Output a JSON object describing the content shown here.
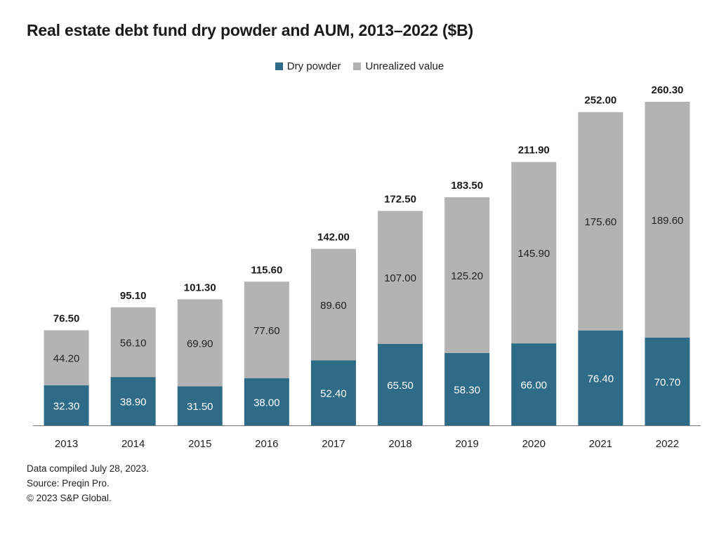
{
  "chart_data": {
    "type": "bar",
    "stacked": true,
    "title": "Real estate debt fund dry powder and AUM, 2013–2022 ($B)",
    "categories": [
      "2013",
      "2014",
      "2015",
      "2016",
      "2017",
      "2018",
      "2019",
      "2020",
      "2021",
      "2022"
    ],
    "series": [
      {
        "name": "Dry powder",
        "color": "#2e6b87",
        "values": [
          32.3,
          38.9,
          31.5,
          38.0,
          52.4,
          65.5,
          58.3,
          66.0,
          76.4,
          70.7
        ],
        "labels": [
          "32.30",
          "38.90",
          "31.50",
          "38.00",
          "52.40",
          "65.50",
          "58.30",
          "66.00",
          "76.40",
          "70.70"
        ]
      },
      {
        "name": "Unrealized value",
        "color": "#b3b3b3",
        "values": [
          44.2,
          56.1,
          69.9,
          77.6,
          89.6,
          107.0,
          125.2,
          145.9,
          175.6,
          189.6
        ],
        "labels": [
          "44.20",
          "56.10",
          "69.90",
          "77.60",
          "89.60",
          "107.00",
          "125.20",
          "145.90",
          "175.60",
          "189.60"
        ]
      }
    ],
    "totals": [
      76.5,
      95.1,
      101.3,
      115.6,
      142.0,
      172.5,
      183.5,
      211.9,
      252.0,
      260.3
    ],
    "total_labels": [
      "76.50",
      "95.10",
      "101.30",
      "115.60",
      "142.00",
      "172.50",
      "183.50",
      "211.90",
      "252.00",
      "260.30"
    ],
    "ylim": [
      0,
      260.3
    ],
    "grid": false,
    "legend_position": "top-center"
  },
  "footnotes": {
    "compiled": "Data compiled July 28, 2023.",
    "source": "Source: Preqin Pro.",
    "copyright": "© 2023 S&P Global."
  }
}
